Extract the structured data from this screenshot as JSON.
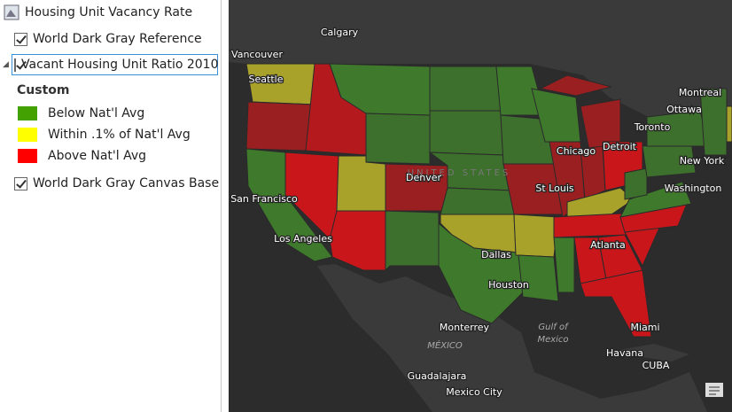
{
  "panel": {
    "map_name": "Housing Unit Vacancy Rate",
    "layers": [
      {
        "label": "World Dark Gray Reference"
      },
      {
        "label": "Vacant Housing Unit Ratio 2010"
      },
      {
        "label": "World Dark Gray Canvas Base"
      }
    ],
    "legend": {
      "heading": "Custom",
      "items": [
        {
          "label": "Below Nat'l Avg",
          "color": "#43a102"
        },
        {
          "label": "Within .1% of Nat'l Avg",
          "color": "#ffff00"
        },
        {
          "label": "Above Nat'l Avg",
          "color": "#ff0000"
        }
      ]
    }
  },
  "map": {
    "labels": [
      "Calgary",
      "Vancouver",
      "Seattle",
      "Ottawa",
      "Montreal",
      "Toronto",
      "Chicago",
      "Detroit",
      "New York",
      "Washington",
      "Denver",
      "UNITED STATES",
      "St Louis",
      "San Francisco",
      "Los Angeles",
      "Dallas",
      "Houston",
      "Atlanta",
      "Miami",
      "Monterrey",
      "MÉXICO",
      "Gulf of",
      "Mexico",
      "Havana",
      "CUBA",
      "Guadalajara",
      "Mexico City"
    ]
  }
}
